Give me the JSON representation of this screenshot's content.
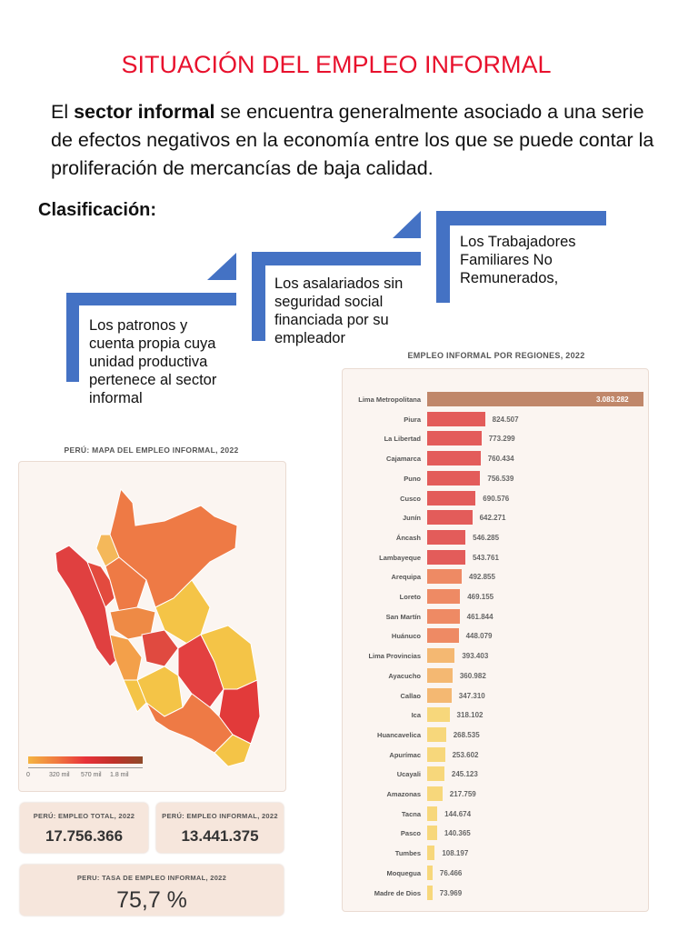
{
  "title": "SITUACIÓN DEL EMPLEO INFORMAL",
  "intro": {
    "prefix": "El ",
    "bold": "sector informal",
    "rest": " se encuentra generalmente asociado a una serie de efectos negativos en la economía entre los que se puede contar la proliferación de mercancías de baja calidad."
  },
  "classification": {
    "heading": "Clasificación:",
    "steps": [
      "Los patronos y cuenta propia cuya unidad productiva pertenece al sector informal",
      "Los asalariados sin seguridad social financiada por su empleador",
      "Los Trabajadores Familiares No Remunerados,"
    ],
    "color": "#4472c4"
  },
  "map": {
    "title": "PERÚ: MAPA DEL EMPLEO INFORMAL, 2022",
    "legend_ticks": [
      "0",
      "320 mil",
      "570 mil",
      "1.8 mil"
    ]
  },
  "kpis": {
    "total_label": "PERÚ: EMPLEO TOTAL, 2022",
    "total_value": "17.756.366",
    "informal_label": "PERÚ: EMPLEO INFORMAL, 2022",
    "informal_value": "13.441.375",
    "rate_label": "PERU: TASA DE EMPLEO INFORMAL, 2022",
    "rate_value": "75,7 %"
  },
  "chart_data": {
    "type": "bar",
    "orientation": "horizontal",
    "title": "EMPLEO INFORMAL POR REGIONES, 2022",
    "categories": [
      "Lima Metropolitana",
      "Piura",
      "La Libertad",
      "Cajamarca",
      "Puno",
      "Cusco",
      "Junín",
      "Áncash",
      "Lambayeque",
      "Arequipa",
      "Loreto",
      "San Martín",
      "Huánuco",
      "Lima Provincias",
      "Ayacucho",
      "Callao",
      "Ica",
      "Huancavelica",
      "Apurímac",
      "Ucayali",
      "Amazonas",
      "Tacna",
      "Pasco",
      "Tumbes",
      "Moquegua",
      "Madre de Dios"
    ],
    "values": [
      3083282,
      824507,
      773299,
      760434,
      756539,
      690576,
      642271,
      546285,
      543761,
      492855,
      469155,
      461844,
      448079,
      393403,
      360982,
      347310,
      318102,
      268535,
      253602,
      245123,
      217759,
      144674,
      140365,
      108197,
      76466,
      73969
    ],
    "labels": [
      "3.083.282",
      "824.507",
      "773.299",
      "760.434",
      "756.539",
      "690.576",
      "642.271",
      "546.285",
      "543.761",
      "492.855",
      "469.155",
      "461.844",
      "448.079",
      "393.403",
      "360.982",
      "347.310",
      "318.102",
      "268.535",
      "253.602",
      "245.123",
      "217.759",
      "144.674",
      "140.365",
      "108.197",
      "76.466",
      "73.969"
    ],
    "colors": {
      "top": "#c0876a",
      "high": "#e35c5a",
      "mid": "#ee8a64",
      "low": "#f4b872",
      "lowest": "#f7d77b"
    }
  }
}
